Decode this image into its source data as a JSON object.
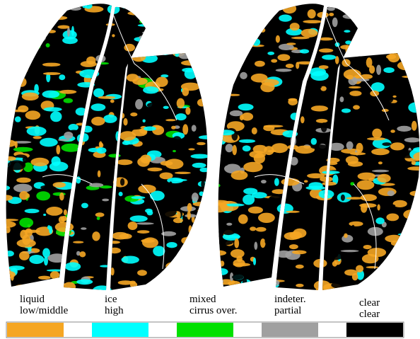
{
  "legend": {
    "items": [
      {
        "top": "liquid",
        "bottom": "low/middle",
        "color": "#f5a623"
      },
      {
        "top": "ice",
        "bottom": "high",
        "color": "#00ffff"
      },
      {
        "top": "mixed",
        "bottom": "cirrus over.",
        "color": "#00e000"
      },
      {
        "top": "indeter.",
        "bottom": "partial",
        "color": "#a0a0a0"
      },
      {
        "top": "clear",
        "bottom": "clear",
        "color": "#000000"
      }
    ]
  }
}
